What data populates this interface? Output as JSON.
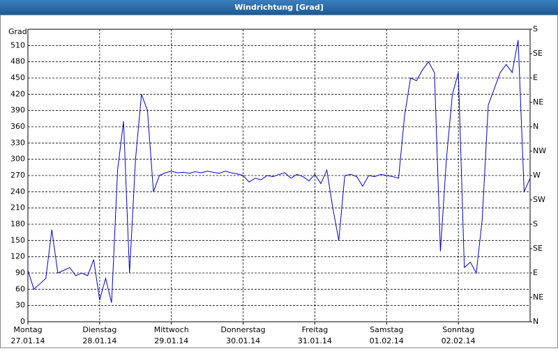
{
  "chart_data": {
    "type": "line",
    "title": "Windrichtung [Grad]",
    "y_label": "Grad",
    "color": "#0000cc",
    "grid": true,
    "xlim": [
      0,
      7
    ],
    "xticks": [
      {
        "value": 0,
        "label": "Montag",
        "date": "27.01.14"
      },
      {
        "value": 1,
        "label": "Dienstag",
        "date": "28.01.14"
      },
      {
        "value": 2,
        "label": "Mittwoch",
        "date": "29.01.14"
      },
      {
        "value": 3,
        "label": "Donnerstag",
        "date": "30.01.14"
      },
      {
        "value": 4,
        "label": "Freitag",
        "date": "31.01.14"
      },
      {
        "value": 5,
        "label": "Samstag",
        "date": "01.02.14"
      },
      {
        "value": 6,
        "label": "Sonntag",
        "date": "02.02.14"
      }
    ],
    "ylim": [
      0,
      540
    ],
    "yticks": [
      0,
      30,
      60,
      90,
      120,
      150,
      180,
      210,
      240,
      270,
      300,
      330,
      360,
      390,
      420,
      450,
      480,
      510
    ],
    "y2lim": [
      0,
      540
    ],
    "y2ticks": [
      {
        "value": 0,
        "label": "N"
      },
      {
        "value": 45,
        "label": "NE"
      },
      {
        "value": 90,
        "label": "E"
      },
      {
        "value": 135,
        "label": "SE"
      },
      {
        "value": 180,
        "label": "S"
      },
      {
        "value": 225,
        "label": "SW"
      },
      {
        "value": 270,
        "label": "W"
      },
      {
        "value": 315,
        "label": "NW"
      },
      {
        "value": 360,
        "label": "N"
      },
      {
        "value": 405,
        "label": "NE"
      },
      {
        "value": 450,
        "label": "E"
      },
      {
        "value": 495,
        "label": "SE"
      },
      {
        "value": 540,
        "label": "S"
      }
    ],
    "values": [
      95,
      60,
      70,
      80,
      170,
      90,
      95,
      100,
      85,
      90,
      85,
      115,
      40,
      80,
      35,
      280,
      370,
      90,
      300,
      420,
      390,
      240,
      270,
      275,
      278,
      275,
      276,
      274,
      277,
      275,
      278,
      276,
      274,
      278,
      275,
      273,
      270,
      258,
      265,
      262,
      270,
      268,
      272,
      275,
      265,
      272,
      268,
      260,
      272,
      255,
      280,
      210,
      150,
      270,
      272,
      268,
      250,
      270,
      268,
      272,
      270,
      268,
      265,
      380,
      450,
      445,
      465,
      480,
      460,
      130,
      300,
      420,
      460,
      100,
      110,
      90,
      190,
      400,
      430,
      460,
      475,
      460,
      520,
      240,
      265
    ]
  }
}
